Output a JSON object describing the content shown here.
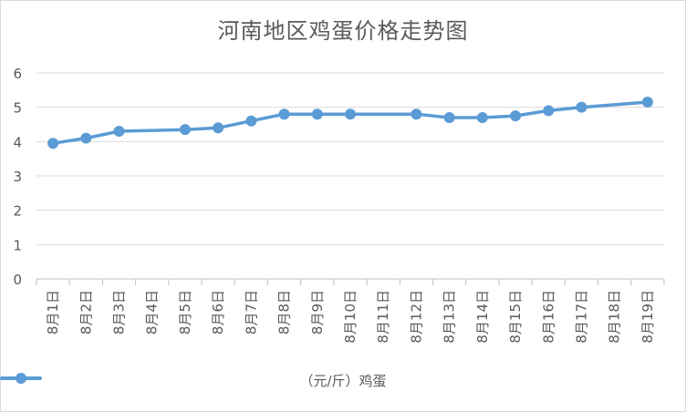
{
  "chart_data": {
    "type": "line",
    "title": "河南地区鸡蛋价格走势图",
    "categories": [
      "8月1日",
      "8月2日",
      "8月3日",
      "8月4日",
      "8月5日",
      "8月6日",
      "8月7日",
      "8月8日",
      "8月9日",
      "8月10日",
      "8月11日",
      "8月12日",
      "8月13日",
      "8月14日",
      "8月15日",
      "8月16日",
      "8月17日",
      "8月18日",
      "8月19日"
    ],
    "series": [
      {
        "name": "（元/斤）鸡蛋",
        "color": "#5B9BD5",
        "values": [
          3.95,
          4.1,
          4.3,
          null,
          4.35,
          4.4,
          4.6,
          4.8,
          4.8,
          4.8,
          null,
          4.8,
          4.7,
          4.7,
          4.75,
          4.9,
          5.0,
          null,
          5.15
        ]
      }
    ],
    "y_ticks": [
      "0",
      "1",
      "2",
      "3",
      "4",
      "5",
      "6"
    ],
    "ylim": [
      0,
      6
    ],
    "xlabel": "",
    "ylabel": "",
    "grid": true,
    "legend_position": "bottom"
  }
}
